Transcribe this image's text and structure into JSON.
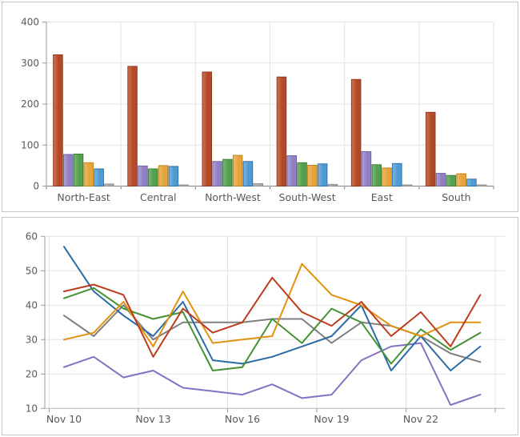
{
  "page": {
    "background": "#ffffff",
    "panel_border": "#c6c6c6",
    "gridline_color": "#e4e4e4",
    "axis_color": "#9b9b9b",
    "baseline_color": "#808080",
    "tick_label_color": "#595959"
  },
  "chart_data": [
    {
      "type": "bar",
      "title": "",
      "categories": [
        "North-East",
        "Central",
        "North-West",
        "South-West",
        "East",
        "South"
      ],
      "series": [
        {
          "name": "red-series",
          "color": "#b24a2a",
          "light": "#d0744f",
          "border": "#8e3a1e",
          "values": [
            320,
            292,
            278,
            266,
            260,
            180
          ]
        },
        {
          "name": "purple-series",
          "color": "#9180c1",
          "light": "#b0a4d6",
          "border": "#7163aa",
          "values": [
            77,
            49,
            60,
            74,
            84,
            31
          ]
        },
        {
          "name": "green-series",
          "color": "#55a04f",
          "light": "#7cb977",
          "border": "#3e7d3a",
          "values": [
            78,
            42,
            65,
            57,
            52,
            26
          ]
        },
        {
          "name": "orange-series",
          "color": "#e6a33b",
          "light": "#f0bc6a",
          "border": "#bf8419",
          "values": [
            57,
            50,
            75,
            51,
            44,
            30
          ]
        },
        {
          "name": "blue-series",
          "color": "#4f9ad3",
          "light": "#7fb6e3",
          "border": "#2f73ae",
          "values": [
            42,
            48,
            60,
            54,
            55,
            17
          ]
        },
        {
          "name": "gray-series",
          "color": "#ababab",
          "light": "#c4c4c4",
          "border": "#909090",
          "values": [
            5,
            3,
            6,
            4,
            3,
            2
          ]
        }
      ],
      "xlabel": "",
      "ylabel": "",
      "ylim": [
        0,
        400
      ],
      "yticks": [
        0,
        100,
        200,
        300,
        400
      ],
      "grid": true,
      "legend": "none"
    },
    {
      "type": "line",
      "title": "",
      "x_tick_labels": [
        "Nov 10",
        "Nov 13",
        "Nov 16",
        "Nov 19",
        "Nov 22"
      ],
      "x_tick_day_index": [
        0,
        3,
        6,
        9,
        12
      ],
      "x_day_count": 15,
      "series": [
        {
          "name": "gray-line",
          "color": "#808080",
          "values": [
            37,
            31,
            40,
            30,
            35,
            35,
            35,
            36,
            36,
            29,
            35,
            34,
            31,
            26,
            23.5
          ]
        },
        {
          "name": "purple-line",
          "color": "#8272c4",
          "values": [
            22,
            25,
            19,
            21,
            16,
            15,
            14,
            17,
            13,
            14,
            24,
            28,
            29,
            11,
            14
          ]
        },
        {
          "name": "blue-line",
          "color": "#2c6ca5",
          "values": [
            57,
            44,
            37,
            31,
            41,
            24,
            23,
            25,
            28,
            31,
            40,
            21,
            31,
            21,
            28
          ]
        },
        {
          "name": "green-line",
          "color": "#449233",
          "values": [
            42,
            45,
            39,
            36,
            38,
            21,
            22,
            36,
            29,
            39,
            35,
            23,
            33,
            27,
            32
          ]
        },
        {
          "name": "orange-line",
          "color": "#e0920f",
          "values": [
            30,
            32,
            41,
            28,
            44,
            29,
            30,
            31,
            52,
            43,
            40,
            34,
            31,
            35,
            35
          ]
        },
        {
          "name": "red-line",
          "color": "#bc3c1d",
          "values": [
            44,
            46,
            43,
            25,
            39,
            32,
            35,
            48,
            38,
            34,
            41,
            31,
            38,
            28,
            43
          ]
        }
      ],
      "xlabel": "",
      "ylabel": "",
      "ylim": [
        10,
        60
      ],
      "yticks": [
        10,
        20,
        30,
        40,
        50,
        60
      ],
      "grid": true,
      "legend": "none"
    }
  ]
}
